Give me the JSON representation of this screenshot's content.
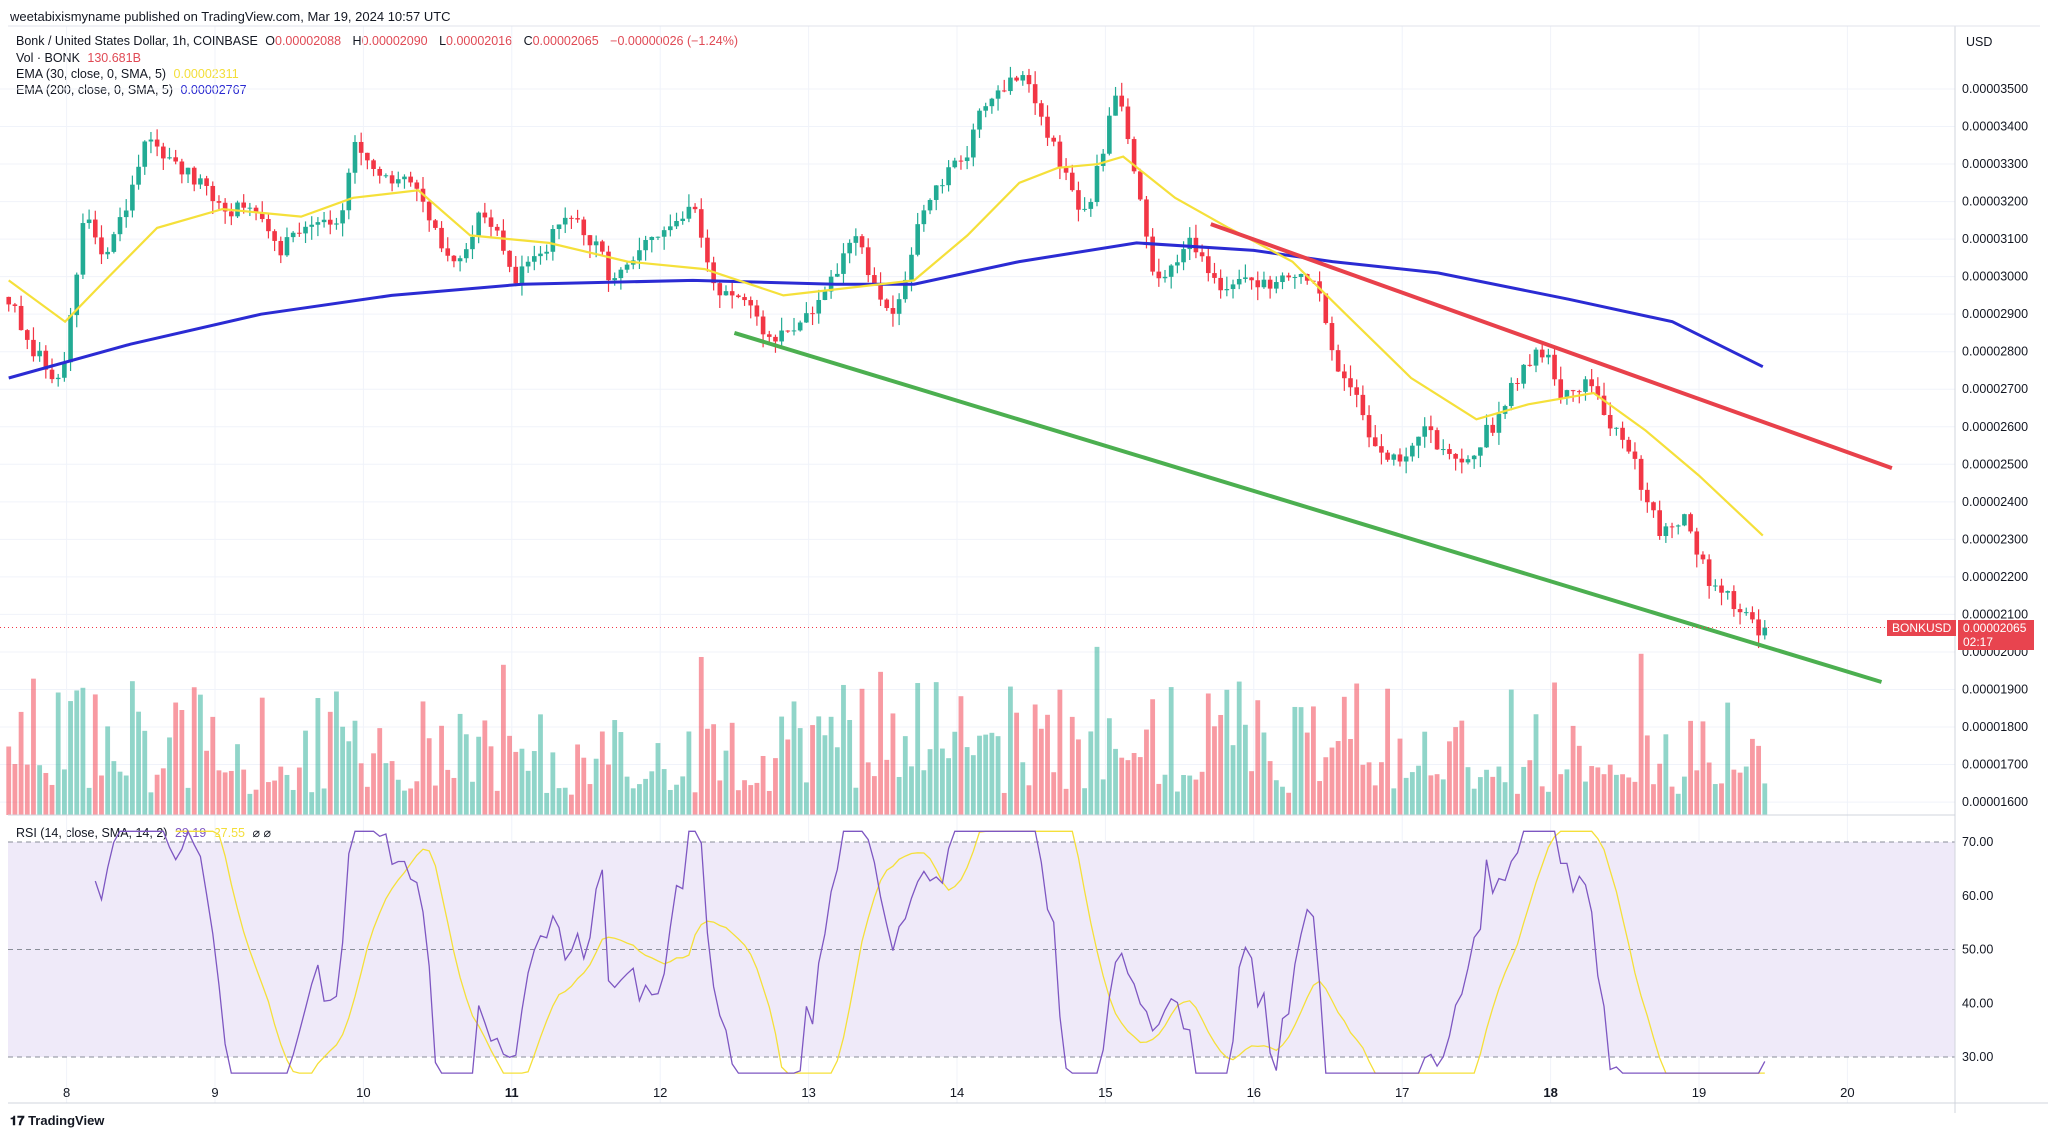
{
  "publisher_line": "weetabixismyname published on TradingView.com, Mar 19, 2024 10:57 UTC",
  "legend": {
    "symbol": "Bonk / United States Dollar, 1h, COINBASE",
    "o_label": "O",
    "o": "0.00002088",
    "h_label": "H",
    "h": "0.00002090",
    "l_label": "L",
    "l": "0.00002016",
    "c_label": "C",
    "c": "0.00002065",
    "change": "−0.00000026 (−1.24%)",
    "vol_label": "Vol · BONK",
    "vol": "130.681B",
    "ema30_label": "EMA (30, close, 0, SMA, 5)",
    "ema30": "0.00002311",
    "ema200_label": "EMA (200, close, 0, SMA, 5)",
    "ema200": "0.00002767",
    "rsi_label": "RSI (14, close, SMA, 14, 2)",
    "rsi": "29.19",
    "rsi_ma": "27.55",
    "rsi_icons": "⌀ ⌀"
  },
  "price_axis": {
    "currency": "USD",
    "ticks": [
      "0.00003500",
      "0.00003400",
      "0.00003300",
      "0.00003200",
      "0.00003100",
      "0.00003000",
      "0.00002900",
      "0.00002800",
      "0.00002700",
      "0.00002600",
      "0.00002500",
      "0.00002400",
      "0.00002300",
      "0.00002200",
      "0.00002100",
      "0.00002000",
      "0.00001900",
      "0.00001800",
      "0.00001700",
      "0.00001600"
    ],
    "symbol_tag": "BONKUSD",
    "last_price": "0.00002065",
    "countdown": "02:17"
  },
  "rsi_axis": {
    "ticks": [
      "70.00",
      "60.00",
      "50.00",
      "40.00",
      "30.00"
    ]
  },
  "date_axis": {
    "ticks": [
      "8",
      "9",
      "10",
      "11",
      "12",
      "13",
      "14",
      "15",
      "16",
      "17",
      "18",
      "19",
      "20"
    ],
    "bold": [
      "11",
      "18"
    ]
  },
  "branding": "TradingView",
  "colors": {
    "up": "#22ab94",
    "down": "#f23645",
    "ema30": "#f5e03a",
    "ema200": "#2b2bd3",
    "trend_upper": "#e8414b",
    "trend_lower": "#4caf50",
    "rsi": "#7e57c2",
    "rsi_bg": "#efeaf9"
  },
  "chart_data": {
    "type": "candlestick",
    "title": "Bonk / United States Dollar, 1h, COINBASE",
    "x_unit": "day of March 2024",
    "y_unit": "USD ×1e-6",
    "ylim": [
      15.7,
      36.5
    ],
    "close_path": [
      [
        7.61,
        29.5
      ],
      [
        7.73,
        28.1
      ],
      [
        7.95,
        27.3
      ],
      [
        8.04,
        29.0
      ],
      [
        8.12,
        31.8
      ],
      [
        8.26,
        30.4
      ],
      [
        8.43,
        32.1
      ],
      [
        8.56,
        33.9
      ],
      [
        8.7,
        33.0
      ],
      [
        8.87,
        32.5
      ],
      [
        9.05,
        31.8
      ],
      [
        9.31,
        31.8
      ],
      [
        9.44,
        30.8
      ],
      [
        9.66,
        31.6
      ],
      [
        9.84,
        31.5
      ],
      [
        9.93,
        33.5
      ],
      [
        10.1,
        32.5
      ],
      [
        10.37,
        32.5
      ],
      [
        10.5,
        30.9
      ],
      [
        10.63,
        30.4
      ],
      [
        10.81,
        31.8
      ],
      [
        11.03,
        29.9
      ],
      [
        11.16,
        30.4
      ],
      [
        11.34,
        31.6
      ],
      [
        11.51,
        31.1
      ],
      [
        11.69,
        29.9
      ],
      [
        11.91,
        30.8
      ],
      [
        12.22,
        31.8
      ],
      [
        12.35,
        29.9
      ],
      [
        12.57,
        29.2
      ],
      [
        12.74,
        28.3
      ],
      [
        12.92,
        28.7
      ],
      [
        13.1,
        29.4
      ],
      [
        13.32,
        31.1
      ],
      [
        13.45,
        29.5
      ],
      [
        13.58,
        28.8
      ],
      [
        13.71,
        31.1
      ],
      [
        13.89,
        32.5
      ],
      [
        14.07,
        33.2
      ],
      [
        14.15,
        34.6
      ],
      [
        14.33,
        35.1
      ],
      [
        14.46,
        35.5
      ],
      [
        14.59,
        33.9
      ],
      [
        14.73,
        32.7
      ],
      [
        14.86,
        31.6
      ],
      [
        14.99,
        33.5
      ],
      [
        15.08,
        35.3
      ],
      [
        15.17,
        33.2
      ],
      [
        15.34,
        29.7
      ],
      [
        15.56,
        31.1
      ],
      [
        15.74,
        29.9
      ],
      [
        15.91,
        29.7
      ],
      [
        16.09,
        29.9
      ],
      [
        16.31,
        30.2
      ],
      [
        16.44,
        29.4
      ],
      [
        16.57,
        27.6
      ],
      [
        16.71,
        26.9
      ],
      [
        16.79,
        25.5
      ],
      [
        16.97,
        25.0
      ],
      [
        17.15,
        25.9
      ],
      [
        17.32,
        25.2
      ],
      [
        17.5,
        25.4
      ],
      [
        17.63,
        26.2
      ],
      [
        17.76,
        27.3
      ],
      [
        17.94,
        28.1
      ],
      [
        18.07,
        26.9
      ],
      [
        18.25,
        27.3
      ],
      [
        18.38,
        26.2
      ],
      [
        18.51,
        25.7
      ],
      [
        18.6,
        24.5
      ],
      [
        18.73,
        23.3
      ],
      [
        18.91,
        23.6
      ],
      [
        19.04,
        22.1
      ],
      [
        19.17,
        21.5
      ],
      [
        19.3,
        21.2
      ],
      [
        19.39,
        20.5
      ],
      [
        19.43,
        20.65
      ]
    ],
    "ema30": [
      [
        7.61,
        29.9
      ],
      [
        7.99,
        28.8
      ],
      [
        8.26,
        29.9
      ],
      [
        8.61,
        31.3
      ],
      [
        9.05,
        31.8
      ],
      [
        9.58,
        31.6
      ],
      [
        9.93,
        32.1
      ],
      [
        10.37,
        32.3
      ],
      [
        10.72,
        31.1
      ],
      [
        11.25,
        30.9
      ],
      [
        11.78,
        30.4
      ],
      [
        12.3,
        30.2
      ],
      [
        12.83,
        29.5
      ],
      [
        13.27,
        29.7
      ],
      [
        13.71,
        29.9
      ],
      [
        14.07,
        31.1
      ],
      [
        14.42,
        32.5
      ],
      [
        14.68,
        32.9
      ],
      [
        14.95,
        33.0
      ],
      [
        15.12,
        33.2
      ],
      [
        15.47,
        32.1
      ],
      [
        15.83,
        31.3
      ],
      [
        16.26,
        30.4
      ],
      [
        16.62,
        29.0
      ],
      [
        17.06,
        27.3
      ],
      [
        17.5,
        26.2
      ],
      [
        17.85,
        26.6
      ],
      [
        18.29,
        26.9
      ],
      [
        18.64,
        25.9
      ],
      [
        19.0,
        24.7
      ],
      [
        19.43,
        23.1
      ]
    ],
    "ema200": [
      [
        7.61,
        27.3
      ],
      [
        8.43,
        28.2
      ],
      [
        9.31,
        29.0
      ],
      [
        10.19,
        29.5
      ],
      [
        11.07,
        29.8
      ],
      [
        12.22,
        29.9
      ],
      [
        13.18,
        29.8
      ],
      [
        13.71,
        29.8
      ],
      [
        14.42,
        30.4
      ],
      [
        15.21,
        30.9
      ],
      [
        16.0,
        30.7
      ],
      [
        16.53,
        30.4
      ],
      [
        17.24,
        30.1
      ],
      [
        18.12,
        29.4
      ],
      [
        18.82,
        28.8
      ],
      [
        19.43,
        27.6
      ]
    ],
    "trendlines": [
      {
        "name": "upper-resistance",
        "points": [
          [
            15.71,
            31.4
          ],
          [
            20.3,
            24.9
          ]
        ]
      },
      {
        "name": "lower-support",
        "points": [
          [
            12.5,
            28.5
          ],
          [
            20.23,
            19.2
          ]
        ]
      }
    ],
    "rsi": {
      "period": 14,
      "ma_period": 14,
      "overbought": 70,
      "middle": 50,
      "oversold": 30,
      "last": 29.19,
      "last_ma": 27.55
    },
    "volume_last": "130.681B"
  }
}
